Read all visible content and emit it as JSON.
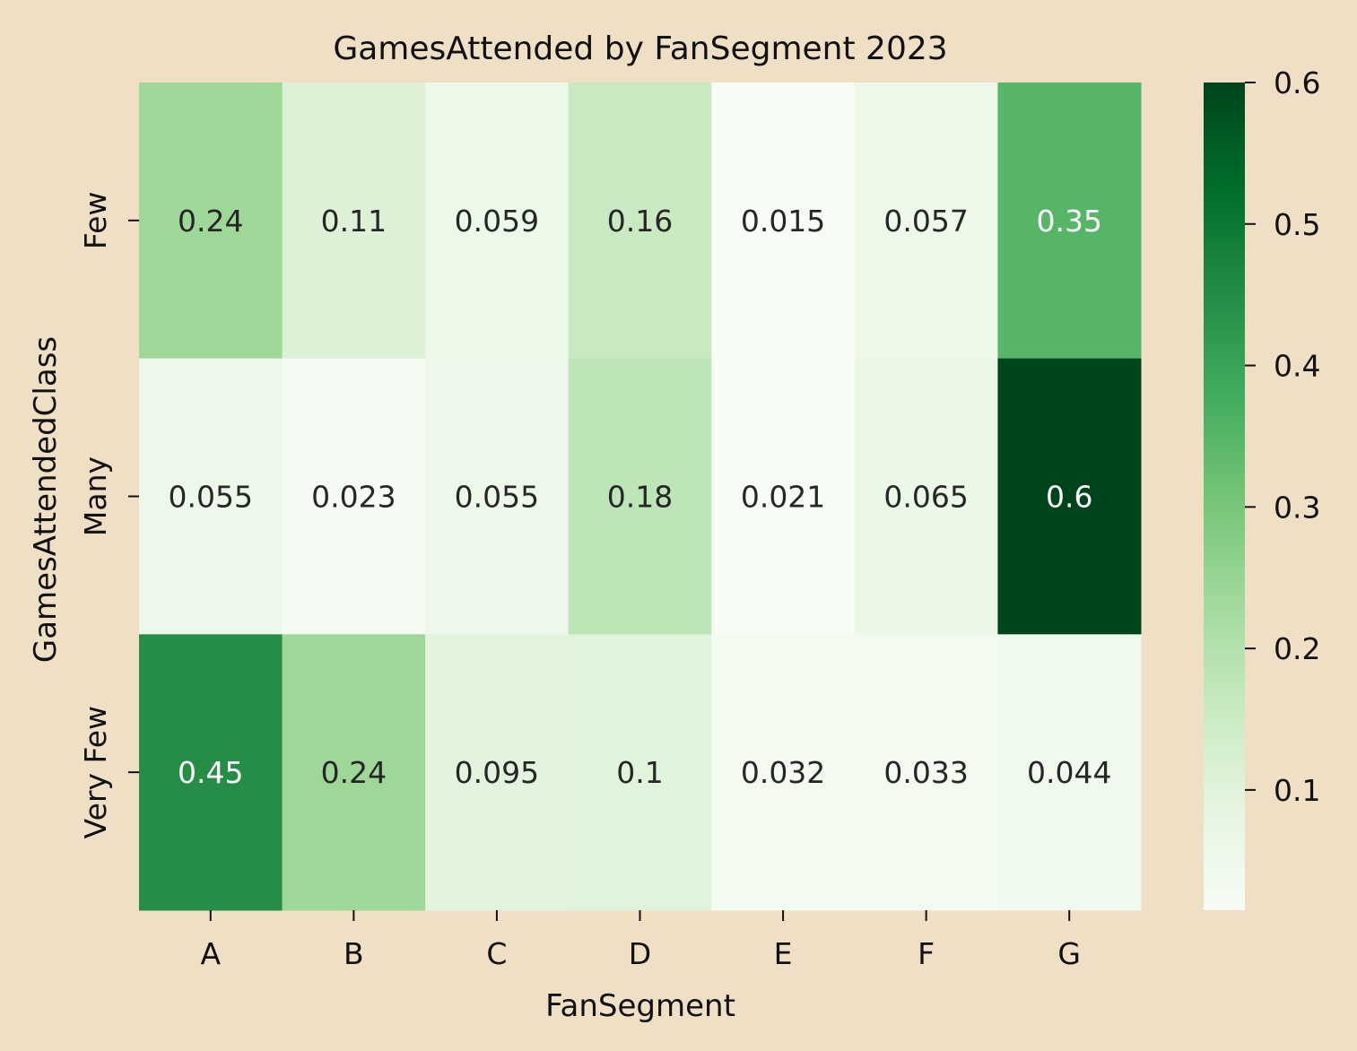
{
  "chart_data": {
    "type": "heatmap",
    "title": "GamesAttended by FanSegment 2023",
    "xlabel": "FanSegment",
    "ylabel": "GamesAttendedClass",
    "x_categories": [
      "A",
      "B",
      "C",
      "D",
      "E",
      "F",
      "G"
    ],
    "y_categories": [
      "Few",
      "Many",
      "Very Few"
    ],
    "values": [
      [
        0.24,
        0.11,
        0.059,
        0.16,
        0.015,
        0.057,
        0.35
      ],
      [
        0.055,
        0.023,
        0.055,
        0.18,
        0.021,
        0.065,
        0.6
      ],
      [
        0.45,
        0.24,
        0.095,
        0.1,
        0.032,
        0.033,
        0.044
      ]
    ],
    "cell_labels": [
      [
        "0.24",
        "0.11",
        "0.059",
        "0.16",
        "0.015",
        "0.057",
        "0.35"
      ],
      [
        "0.055",
        "0.023",
        "0.055",
        "0.18",
        "0.021",
        "0.065",
        "0.6"
      ],
      [
        "0.45",
        "0.24",
        "0.095",
        "0.1",
        "0.032",
        "0.033",
        "0.044"
      ]
    ],
    "colormap": "Greens",
    "color_range": [
      0.015,
      0.6
    ],
    "colorbar_ticks": [
      "0.1",
      "0.2",
      "0.3",
      "0.4",
      "0.5",
      "0.6"
    ],
    "colorbar_tick_values": [
      0.1,
      0.2,
      0.3,
      0.4,
      0.5,
      0.6
    ],
    "colors": {
      "background": "#efe0c5",
      "text": "#111111",
      "dark_cell_text": "#262626",
      "light_cell_text": "#ffffff"
    }
  }
}
